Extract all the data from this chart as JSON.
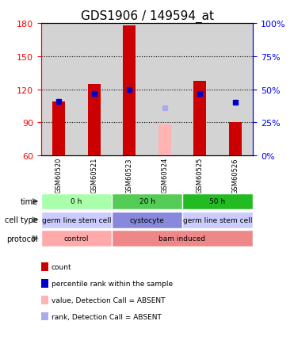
{
  "title": "GDS1906 / 149594_at",
  "samples": [
    "GSM60520",
    "GSM60521",
    "GSM60523",
    "GSM60524",
    "GSM60525",
    "GSM60526"
  ],
  "count_values": [
    109,
    125,
    178,
    null,
    128,
    90
  ],
  "count_absent": [
    null,
    null,
    null,
    88,
    null,
    null
  ],
  "percentile_values": [
    109,
    116,
    120,
    null,
    116,
    108
  ],
  "percentile_absent": [
    null,
    null,
    null,
    103,
    null,
    null
  ],
  "ylim_left": [
    60,
    180
  ],
  "ylim_right": [
    0,
    100
  ],
  "yticks_left": [
    60,
    90,
    120,
    150,
    180
  ],
  "yticks_right": [
    0,
    25,
    50,
    75,
    100
  ],
  "bar_bottom": 60,
  "count_color": "#cc0000",
  "count_absent_color": "#ffb3b3",
  "percentile_color": "#0000cc",
  "percentile_absent_color": "#aaaaee",
  "bg_color": "#d3d3d3",
  "plot_bg": "#d3d3d3",
  "time_groups": [
    {
      "label": "0 h",
      "cols": [
        0,
        1
      ],
      "color": "#aaffaa"
    },
    {
      "label": "20 h",
      "cols": [
        2,
        3
      ],
      "color": "#55cc55"
    },
    {
      "label": "50 h",
      "cols": [
        4,
        5
      ],
      "color": "#22bb22"
    }
  ],
  "celltype_groups": [
    {
      "label": "germ line stem cell",
      "cols": [
        0,
        1
      ],
      "color": "#ccccff"
    },
    {
      "label": "cystocyte",
      "cols": [
        2,
        3
      ],
      "color": "#8888dd"
    },
    {
      "label": "germ line stem cell",
      "cols": [
        4,
        5
      ],
      "color": "#ccccff"
    }
  ],
  "protocol_groups": [
    {
      "label": "control",
      "cols": [
        0,
        1
      ],
      "color": "#ffaaaa"
    },
    {
      "label": "bam induced",
      "cols": [
        2,
        3,
        4,
        5
      ],
      "color": "#ee8888"
    }
  ],
  "legend_items": [
    {
      "color": "#cc0000",
      "label": "count"
    },
    {
      "color": "#0000cc",
      "label": "percentile rank within the sample"
    },
    {
      "color": "#ffb3b3",
      "label": "value, Detection Call = ABSENT"
    },
    {
      "color": "#aaaaee",
      "label": "rank, Detection Call = ABSENT"
    }
  ]
}
